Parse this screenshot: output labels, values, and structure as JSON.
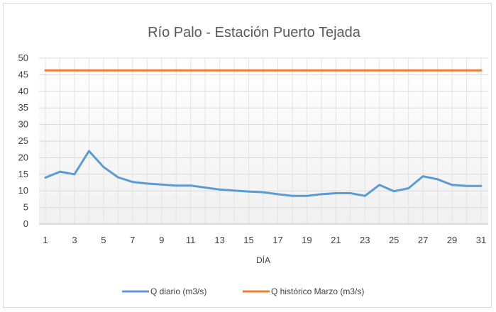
{
  "chart_data": {
    "type": "line",
    "title": "Río Palo - Estación Puerto Tejada",
    "xlabel": "DÍA",
    "ylabel": "",
    "x": [
      1,
      2,
      3,
      4,
      5,
      6,
      7,
      8,
      9,
      10,
      11,
      12,
      13,
      14,
      15,
      16,
      17,
      18,
      19,
      20,
      21,
      22,
      23,
      24,
      25,
      26,
      27,
      28,
      29,
      30,
      31
    ],
    "x_tick_labels": [
      "1",
      "3",
      "5",
      "7",
      "9",
      "11",
      "13",
      "15",
      "17",
      "19",
      "21",
      "23",
      "25",
      "27",
      "29",
      "31"
    ],
    "ylim": [
      0,
      50
    ],
    "y_tick_labels": [
      "0",
      "5",
      "10",
      "15",
      "20",
      "25",
      "30",
      "35",
      "40",
      "45",
      "50"
    ],
    "grid": true,
    "legend_position": "bottom",
    "series": [
      {
        "name": "Q diario (m3/s)",
        "color": "#5b9bd5",
        "values": [
          14,
          15.8,
          15,
          22,
          17.2,
          14.1,
          12.7,
          12.2,
          11.9,
          11.6,
          11.6,
          11,
          10.4,
          10.1,
          9.8,
          9.6,
          9,
          8.5,
          8.5,
          9,
          9.3,
          9.3,
          8.5,
          11.8,
          9.9,
          10.8,
          14.4,
          13.5,
          11.8,
          11.5,
          11.5
        ]
      },
      {
        "name": "Q histórico Marzo (m3/s)",
        "color": "#ed7d31",
        "values": [
          46.3,
          46.3,
          46.3,
          46.3,
          46.3,
          46.3,
          46.3,
          46.3,
          46.3,
          46.3,
          46.3,
          46.3,
          46.3,
          46.3,
          46.3,
          46.3,
          46.3,
          46.3,
          46.3,
          46.3,
          46.3,
          46.3,
          46.3,
          46.3,
          46.3,
          46.3,
          46.3,
          46.3,
          46.3,
          46.3,
          46.3
        ]
      }
    ]
  }
}
